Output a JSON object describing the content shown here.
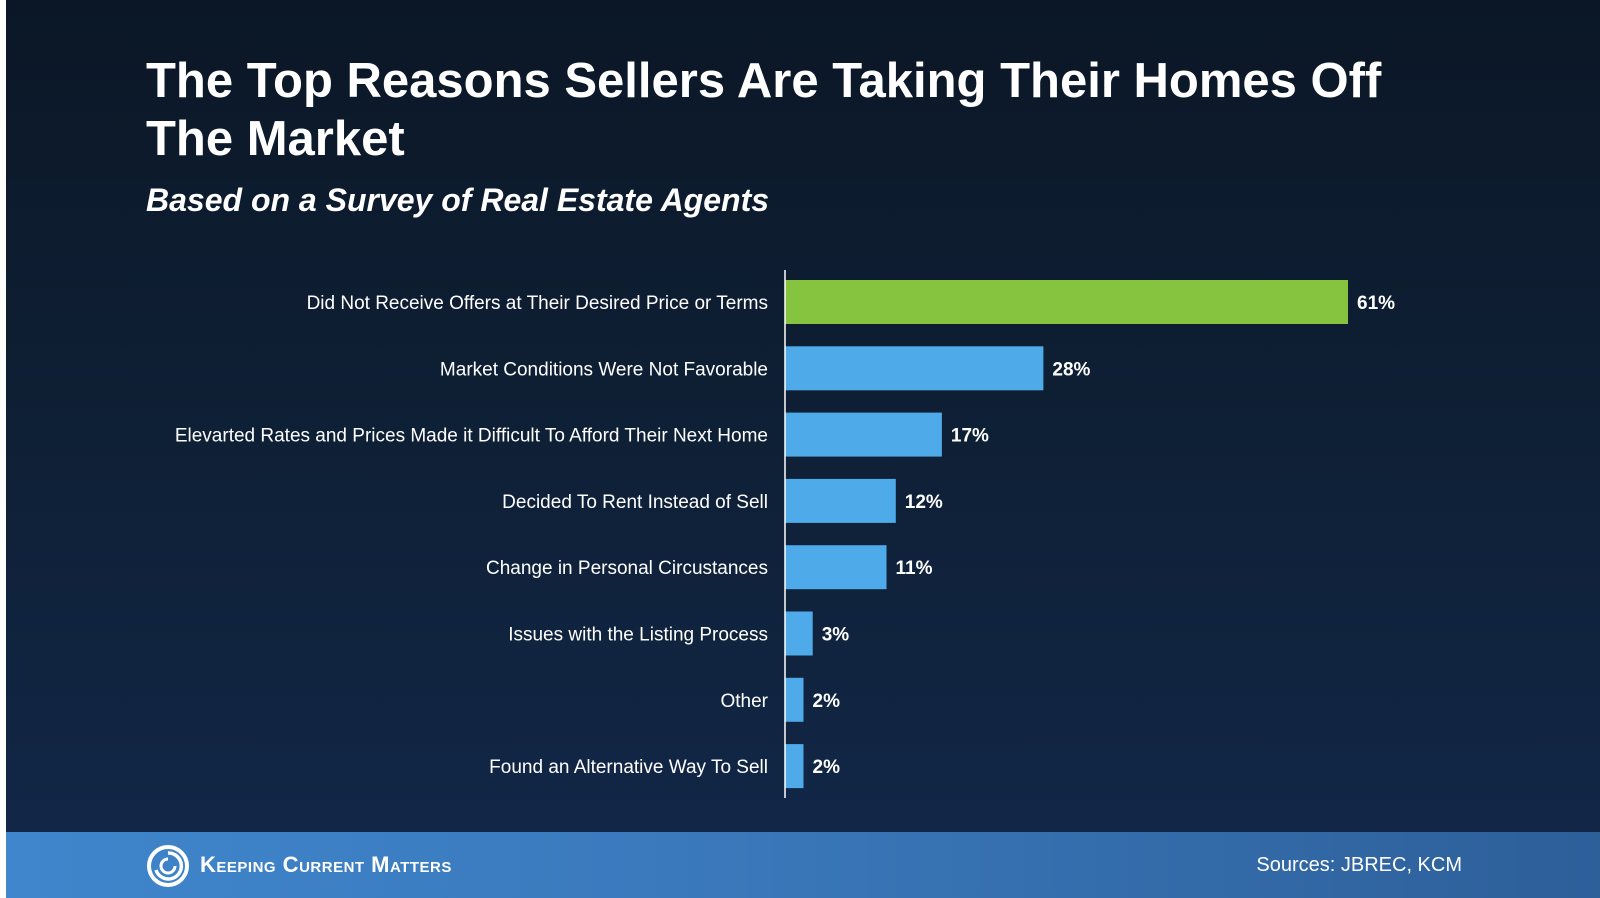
{
  "header": {
    "title": "The Top Reasons Sellers Are Taking Their Homes Off The Market",
    "subtitle": "Based on a Survey of Real Estate Agents"
  },
  "footer": {
    "brand": "Keeping Current Matters",
    "sources": "Sources: JBREC, KCM",
    "logo_icon": "swirl-logo-icon"
  },
  "colors": {
    "highlight_bar": "#86c440",
    "bar": "#4eaae8",
    "axis": "#ffffff"
  },
  "chart_data": {
    "type": "bar",
    "orientation": "horizontal",
    "categories": [
      "Did Not Receive Offers at Their Desired Price or Terms",
      "Market Conditions Were Not Favorable",
      "Elevarted Rates and Prices Made it Difficult To Afford Their Next Home",
      "Decided To Rent Instead of Sell",
      "Change in Personal Circustances",
      "Issues with the Listing Process",
      "Other",
      "Found an Alternative Way To Sell"
    ],
    "values": [
      61,
      28,
      17,
      12,
      11,
      3,
      2,
      2
    ],
    "value_labels": [
      "61%",
      "28%",
      "17%",
      "12%",
      "11%",
      "3%",
      "2%",
      "2%"
    ],
    "highlight_index": 0,
    "xlim": [
      0,
      61
    ],
    "grid": false,
    "legend": "none"
  }
}
